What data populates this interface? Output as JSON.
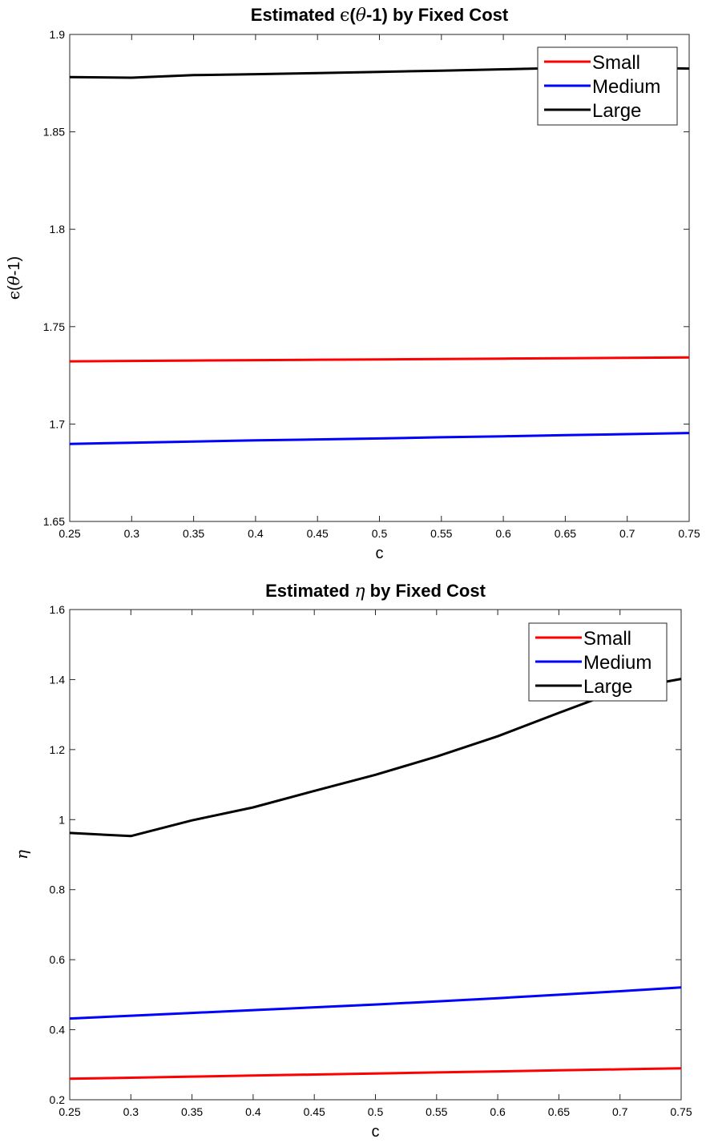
{
  "chart_data": [
    {
      "type": "line",
      "title_parts": [
        "Estimated ",
        "ϵ",
        "(",
        "θ",
        "-1) by Fixed Cost"
      ],
      "xlabel": "c",
      "ylabel_parts": [
        "ϵ",
        "(",
        "θ",
        "-1)"
      ],
      "xlim": [
        0.25,
        0.75
      ],
      "ylim": [
        1.65,
        1.9
      ],
      "xticks": [
        0.25,
        0.3,
        0.35,
        0.4,
        0.45,
        0.5,
        0.55,
        0.6,
        0.65,
        0.7,
        0.75
      ],
      "yticks": [
        1.65,
        1.7,
        1.75,
        1.8,
        1.85,
        1.9
      ],
      "xtick_labels": [
        "0.25",
        "0.3",
        "0.35",
        "0.4",
        "0.45",
        "0.5",
        "0.55",
        "0.6",
        "0.65",
        "0.7",
        "0.75"
      ],
      "ytick_labels": [
        "1.65",
        "1.7",
        "1.75",
        "1.8",
        "1.85",
        "1.9"
      ],
      "legend_position": "top-right",
      "x": [
        0.25,
        0.3,
        0.35,
        0.4,
        0.45,
        0.5,
        0.55,
        0.6,
        0.65,
        0.7,
        0.75
      ],
      "series": [
        {
          "name": "Small",
          "color": "#ff0000",
          "values": [
            1.7322,
            1.7324,
            1.7326,
            1.7328,
            1.733,
            1.7332,
            1.7334,
            1.7336,
            1.7338,
            1.734,
            1.7342
          ]
        },
        {
          "name": "Medium",
          "color": "#0000ff",
          "values": [
            1.6898,
            1.6904,
            1.691,
            1.6916,
            1.6921,
            1.6926,
            1.6932,
            1.6937,
            1.6943,
            1.6948,
            1.6954
          ]
        },
        {
          "name": "Large",
          "color": "#000000",
          "values": [
            1.8781,
            1.8778,
            1.8791,
            1.8796,
            1.8802,
            1.8808,
            1.8814,
            1.8821,
            1.8828,
            1.883,
            1.8825
          ]
        }
      ]
    },
    {
      "type": "line",
      "title_parts": [
        "Estimated ",
        "η",
        " by Fixed Cost"
      ],
      "xlabel": "c",
      "ylabel_parts": [
        "η"
      ],
      "xlim": [
        0.25,
        0.75
      ],
      "ylim": [
        0.2,
        1.6
      ],
      "xticks": [
        0.25,
        0.3,
        0.35,
        0.4,
        0.45,
        0.5,
        0.55,
        0.6,
        0.65,
        0.7,
        0.75
      ],
      "yticks": [
        0.2,
        0.4,
        0.6,
        0.8,
        1.0,
        1.2,
        1.4,
        1.6
      ],
      "xtick_labels": [
        "0.25",
        "0.3",
        "0.35",
        "0.4",
        "0.45",
        "0.5",
        "0.55",
        "0.6",
        "0.65",
        "0.7",
        "0.75"
      ],
      "ytick_labels": [
        "0.2",
        "0.4",
        "0.6",
        "0.8",
        "1",
        "1.2",
        "1.4",
        "1.6"
      ],
      "legend_position": "top-right",
      "x": [
        0.25,
        0.3,
        0.35,
        0.4,
        0.45,
        0.5,
        0.55,
        0.6,
        0.65,
        0.7,
        0.75
      ],
      "series": [
        {
          "name": "Small",
          "color": "#ff0000",
          "values": [
            0.26,
            0.263,
            0.266,
            0.269,
            0.272,
            0.275,
            0.278,
            0.281,
            0.284,
            0.287,
            0.29
          ]
        },
        {
          "name": "Medium",
          "color": "#0000ff",
          "values": [
            0.432,
            0.44,
            0.448,
            0.456,
            0.464,
            0.472,
            0.481,
            0.49,
            0.5,
            0.51,
            0.521
          ]
        },
        {
          "name": "Large",
          "color": "#000000",
          "values": [
            0.962,
            0.953,
            0.998,
            1.035,
            1.082,
            1.128,
            1.18,
            1.238,
            1.305,
            1.37,
            1.402
          ]
        }
      ]
    }
  ]
}
